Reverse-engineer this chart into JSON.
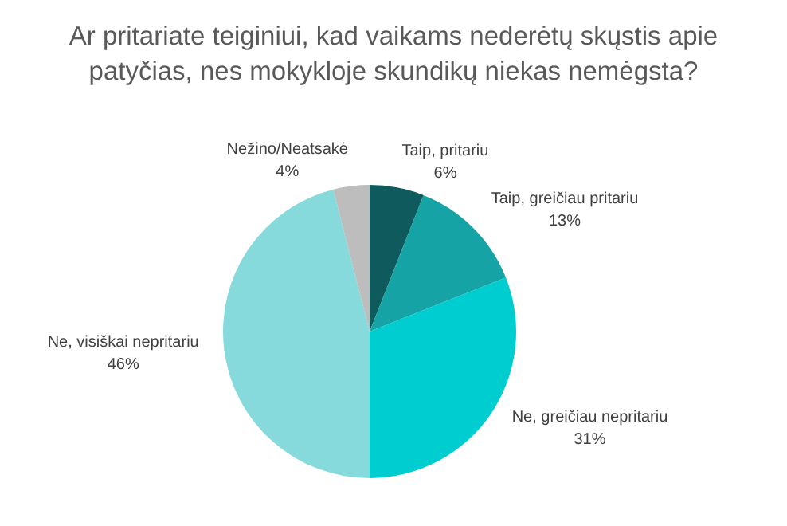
{
  "chart_data": {
    "type": "pie",
    "title": "Ar pritariate teiginiui, kad vaikams nederėtų skųstis apie patyčias, nes mokykloje skundikų niekas nemėgsta?",
    "categories": [
      "Taip, pritariu",
      "Taip, greičiau pritariu",
      "Ne, greičiau nepritariu",
      "Ne, visiškai nepritariu",
      "Nežino/Neatsakė"
    ],
    "values": [
      6,
      13,
      31,
      46,
      4
    ],
    "colors": [
      "#0e5a5c",
      "#16a3a5",
      "#00cdd0",
      "#86dadc",
      "#bdbdbd"
    ],
    "value_labels": [
      "6%",
      "13%",
      "31%",
      "46%",
      "4%"
    ],
    "legend": false
  }
}
